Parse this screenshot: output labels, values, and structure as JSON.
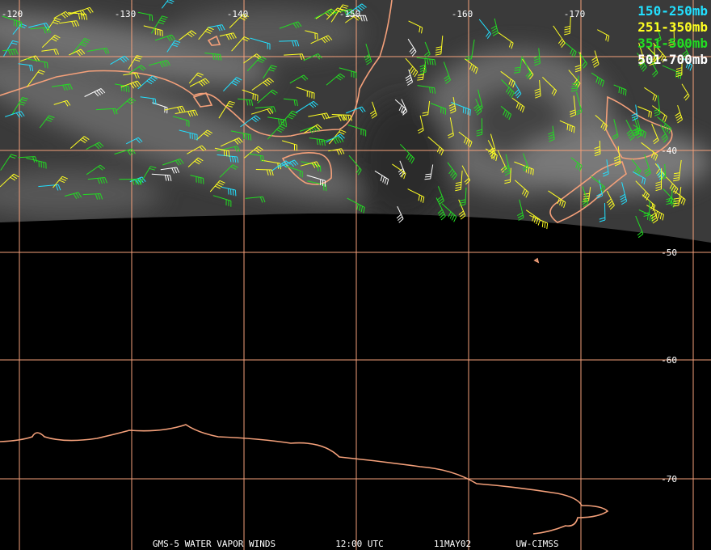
{
  "map": {
    "longitude_labels": [
      -120,
      -130,
      -140,
      -150,
      -160,
      -170
    ],
    "latitude_labels": [
      -40,
      -50,
      -60,
      -70
    ],
    "legend": [
      {
        "label": "150-250mb",
        "color": "#22e0ff"
      },
      {
        "label": "251-350mb",
        "color": "#ffff22"
      },
      {
        "label": "351-500mb",
        "color": "#22dd22"
      },
      {
        "label": "501-700mb",
        "color": "#ffffff"
      }
    ],
    "footer": [
      "GMS-5 WATER VAPOR WINDS",
      "12:00 UTC",
      "11MAY02",
      "UW-CIMSS"
    ]
  }
}
